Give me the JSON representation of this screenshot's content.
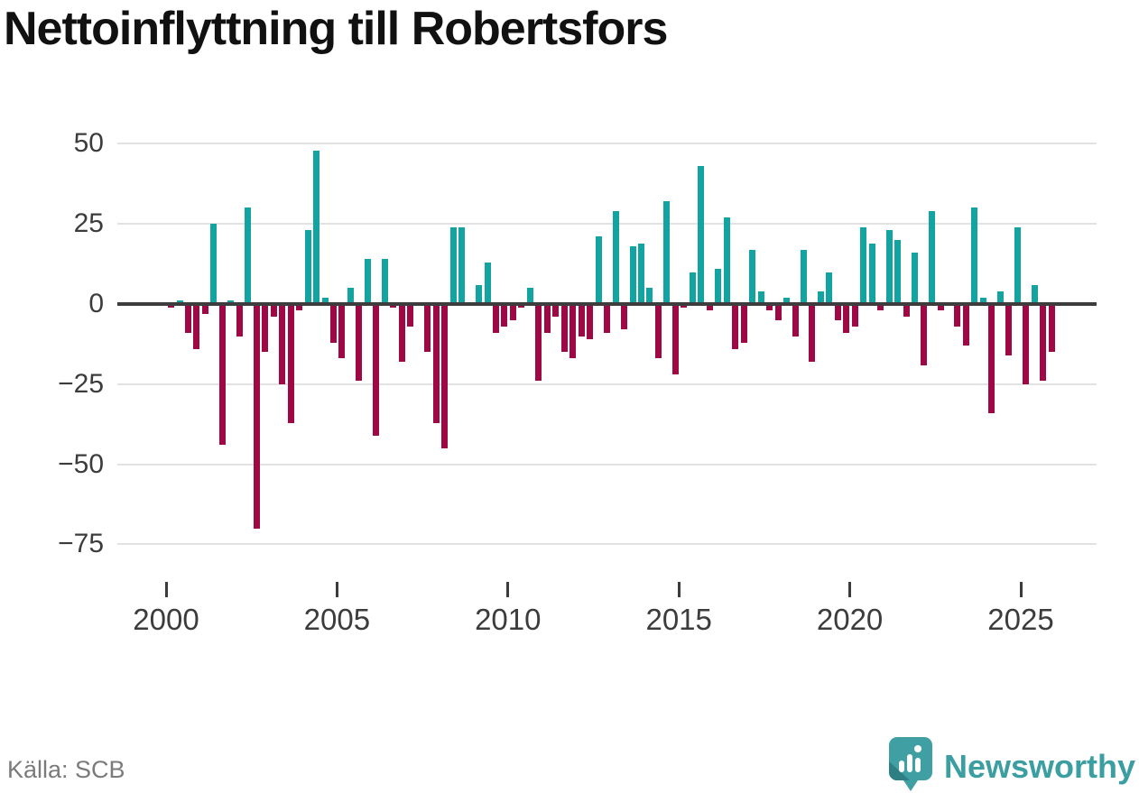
{
  "title": "Nettoinflyttning till Robertsfors",
  "footer": {
    "source": "Källa: SCB",
    "brand": "Newsworthy"
  },
  "colors": {
    "positive_bar": "#13a3a0",
    "negative_bar": "#9e0845",
    "zero_axis": "#3d3d3d",
    "gridline": "#e2e2e2",
    "title_text": "#111111",
    "tick_text": "#3c3c3c",
    "source_text": "#7b7b7b",
    "brand_teal": "#3b9ea1",
    "logo_fill": "#3f9fa3",
    "logo_shade": "#2d7f84"
  },
  "y_axis": {
    "ticks": [
      {
        "label": "50",
        "value": 50
      },
      {
        "label": "25",
        "value": 25
      },
      {
        "label": "0",
        "value": 0
      },
      {
        "label": "−25",
        "value": -25
      },
      {
        "label": "−50",
        "value": -50
      },
      {
        "label": "−75",
        "value": -75
      }
    ]
  },
  "x_axis": {
    "ticks": [
      {
        "label": "2000",
        "year": 2000
      },
      {
        "label": "2005",
        "year": 2005
      },
      {
        "label": "2010",
        "year": 2010
      },
      {
        "label": "2015",
        "year": 2015
      },
      {
        "label": "2020",
        "year": 2020
      },
      {
        "label": "2025",
        "year": 2025
      }
    ]
  },
  "chart_data": {
    "type": "bar",
    "title": "Nettoinflyttning till Robertsfors",
    "xlabel": "",
    "ylabel": "",
    "x_unit": "quarter",
    "start": "2000-Q1",
    "end": "2025-Q4",
    "ylim": [
      -75,
      50
    ],
    "grid": true,
    "legend": "none",
    "years": [
      {
        "year": 2000,
        "q": [
          -1,
          1,
          -9,
          -14
        ]
      },
      {
        "year": 2001,
        "q": [
          -3,
          25,
          -44,
          1
        ]
      },
      {
        "year": 2002,
        "q": [
          -10,
          30,
          -70,
          -15
        ]
      },
      {
        "year": 2003,
        "q": [
          -4,
          -25,
          -37,
          -2
        ]
      },
      {
        "year": 2004,
        "q": [
          23,
          48,
          2,
          -12
        ]
      },
      {
        "year": 2005,
        "q": [
          -17,
          5,
          -24,
          14
        ]
      },
      {
        "year": 2006,
        "q": [
          -41,
          14,
          -1,
          -18
        ]
      },
      {
        "year": 2007,
        "q": [
          -7,
          0,
          -15,
          -37
        ]
      },
      {
        "year": 2008,
        "q": [
          -45,
          24,
          24,
          0
        ]
      },
      {
        "year": 2009,
        "q": [
          6,
          13,
          -9,
          -7
        ]
      },
      {
        "year": 2010,
        "q": [
          -5,
          -1,
          5,
          -24
        ]
      },
      {
        "year": 2011,
        "q": [
          -9,
          -4,
          -15,
          -17
        ]
      },
      {
        "year": 2012,
        "q": [
          -10,
          -11,
          21,
          -9
        ]
      },
      {
        "year": 2013,
        "q": [
          29,
          -8,
          18,
          19
        ]
      },
      {
        "year": 2014,
        "q": [
          5,
          -17,
          32,
          -22
        ]
      },
      {
        "year": 2015,
        "q": [
          -1,
          10,
          43,
          -2
        ]
      },
      {
        "year": 2016,
        "q": [
          11,
          27,
          -14,
          -12
        ]
      },
      {
        "year": 2017,
        "q": [
          17,
          4,
          -2,
          -5
        ]
      },
      {
        "year": 2018,
        "q": [
          2,
          -10,
          17,
          -18
        ]
      },
      {
        "year": 2019,
        "q": [
          4,
          10,
          -5,
          -9
        ]
      },
      {
        "year": 2020,
        "q": [
          -7,
          24,
          19,
          -2
        ]
      },
      {
        "year": 2021,
        "q": [
          23,
          20,
          -4,
          16
        ]
      },
      {
        "year": 2022,
        "q": [
          -19,
          29,
          -2,
          0
        ]
      },
      {
        "year": 2023,
        "q": [
          -7,
          -13,
          30,
          2
        ]
      },
      {
        "year": 2024,
        "q": [
          -34,
          4,
          -16,
          24
        ]
      },
      {
        "year": 2025,
        "q": [
          -25,
          6,
          -24,
          -15
        ]
      }
    ]
  }
}
